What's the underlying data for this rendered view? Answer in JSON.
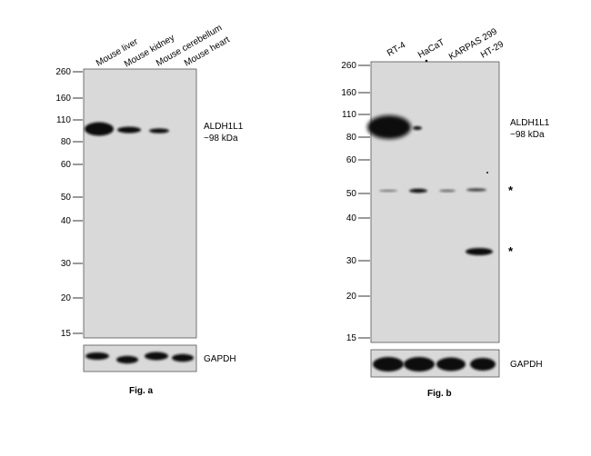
{
  "fig_a": {
    "caption": "Fig. a",
    "lanes": [
      "Mouse liver",
      "Mouse kidney",
      "Mouse cerebellum",
      "Mouse heart"
    ],
    "mw_markers": [
      "260",
      "160",
      "110",
      "80",
      "60",
      "50",
      "40",
      "30",
      "20",
      "15"
    ],
    "band_label_line1": "ALDH1L1",
    "band_label_line2": "~98 kDa",
    "loading_label": "GAPDH"
  },
  "fig_b": {
    "caption": "Fig. b",
    "lanes": [
      "RT-4",
      "HaCaT",
      "KARPAS 299",
      "HT-29"
    ],
    "mw_markers": [
      "260",
      "160",
      "110",
      "80",
      "60",
      "50",
      "40",
      "30",
      "20",
      "15"
    ],
    "band_label_line1": "ALDH1L1",
    "band_label_line2": "~98 kDa",
    "nonspecific_marker_1": "*",
    "nonspecific_marker_2": "*",
    "loading_label": "GAPDH"
  },
  "colors": {
    "membrane": "#d9d9d9",
    "band": "#111111"
  }
}
